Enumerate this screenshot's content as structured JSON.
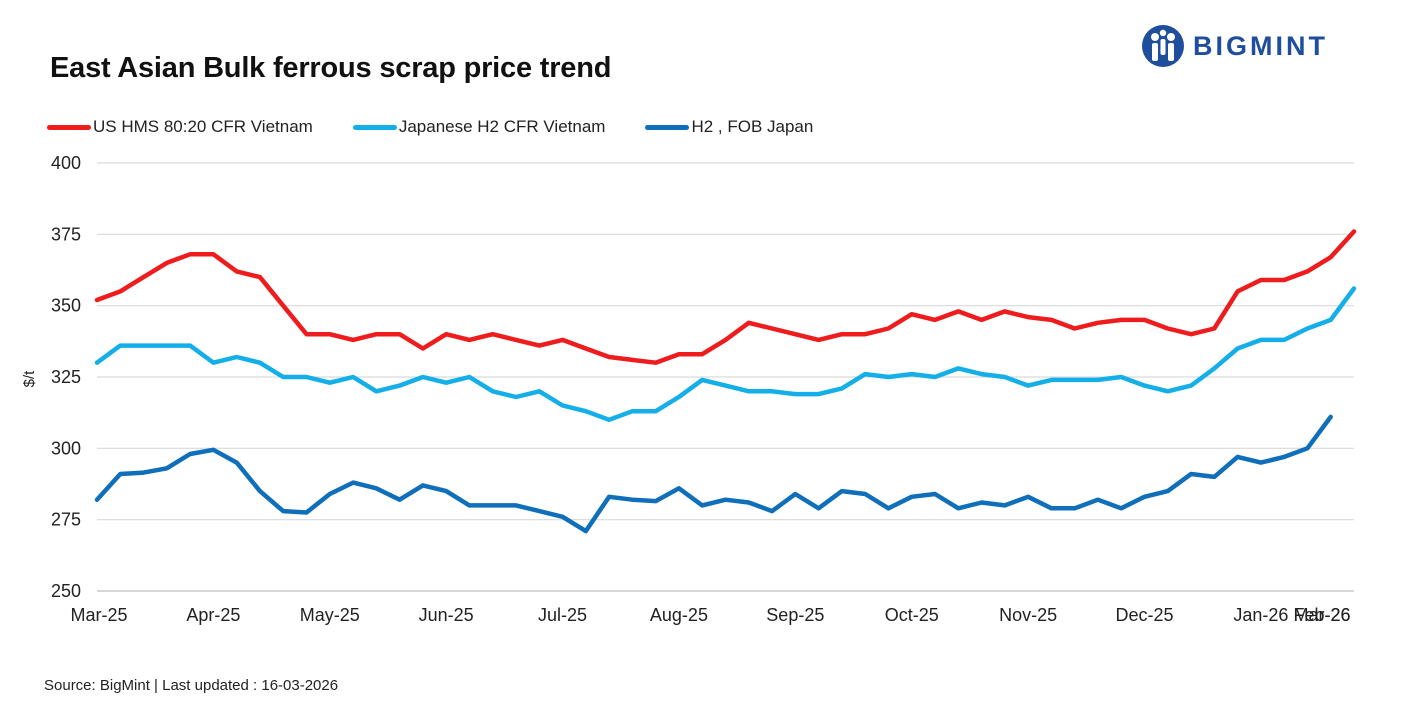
{
  "header": {
    "title": "East Asian Bulk ferrous scrap price trend",
    "brand": "BIGMINT"
  },
  "footer": {
    "source": "Source: BigMint  | Last updated : 16-03-2026"
  },
  "chart_data": {
    "type": "line",
    "title": "East Asian Bulk ferrous scrap price trend",
    "ylabel": "$/t",
    "xlabel": "",
    "ylim": [
      250,
      400
    ],
    "yticks": [
      250,
      275,
      300,
      325,
      350,
      375,
      400
    ],
    "grid": "horizontal",
    "legend_position": "top-left",
    "x_ticks": [
      "Mar-25",
      "Apr-25",
      "May-25",
      "Jun-25",
      "Jul-25",
      "Aug-25",
      "Sep-25",
      "Oct-25",
      "Nov-25",
      "Dec-25",
      "Jan-26",
      "Feb-26",
      "Mar-26"
    ],
    "x_tick_positions": [
      0,
      5,
      10,
      15,
      20,
      25,
      30,
      35,
      40,
      45,
      50,
      55,
      59
    ],
    "series": [
      {
        "name": "US HMS 80:20 CFR Vietnam",
        "color": "#ee1c1c",
        "values": [
          352,
          355,
          360,
          365,
          368,
          368,
          362,
          360,
          350,
          340,
          340,
          338,
          340,
          340,
          335,
          340,
          338,
          340,
          338,
          336,
          338,
          335,
          332,
          331,
          330,
          333,
          333,
          338,
          344,
          342,
          340,
          338,
          340,
          340,
          342,
          347,
          345,
          348,
          345,
          348,
          346,
          345,
          342,
          344,
          345,
          345,
          342,
          340,
          342,
          355,
          359,
          359,
          362,
          367,
          376
        ]
      },
      {
        "name": "Japanese H2 CFR Vietnam",
        "color": "#14aee8",
        "values": [
          330,
          336,
          336,
          336,
          336,
          330,
          332,
          330,
          325,
          325,
          323,
          325,
          320,
          322,
          325,
          323,
          325,
          320,
          318,
          320,
          315,
          313,
          310,
          313,
          313,
          318,
          324,
          322,
          320,
          320,
          319,
          319,
          321,
          326,
          325,
          326,
          325,
          328,
          326,
          325,
          322,
          324,
          324,
          324,
          325,
          322,
          320,
          322,
          328,
          335,
          338,
          338,
          342,
          345,
          356
        ]
      },
      {
        "name": "H2 , FOB Japan",
        "color": "#0f6fba",
        "values": [
          282,
          291,
          291.5,
          293,
          298,
          299.5,
          295,
          285,
          278,
          277.5,
          284,
          288,
          286,
          282,
          287,
          285,
          280,
          280,
          280,
          278,
          276,
          271,
          283,
          282,
          281.5,
          286,
          280,
          282,
          281,
          278,
          284,
          279,
          285,
          284,
          279,
          283,
          284,
          279,
          281,
          280,
          283,
          279,
          279,
          282,
          279,
          283,
          285,
          291,
          290,
          297,
          295,
          297,
          300,
          311
        ]
      }
    ]
  },
  "icons": {
    "logo_mark": "bigmint-people-icon"
  }
}
